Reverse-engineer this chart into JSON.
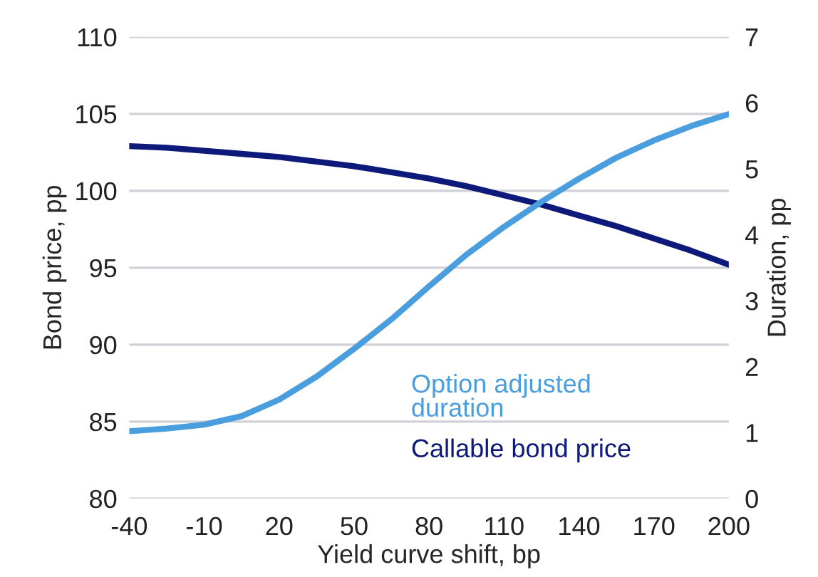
{
  "chart_data": {
    "type": "line",
    "xlabel": "Yield curve shift, bp",
    "ylabel": "Bond price, pp",
    "y2label": "Duration, pp",
    "x": [
      -40,
      -25,
      -10,
      5,
      20,
      35,
      50,
      65,
      80,
      95,
      110,
      125,
      140,
      155,
      170,
      185,
      200
    ],
    "series": [
      {
        "name": "Option adjusted duration",
        "color": "#4a9ede",
        "axis": "y2",
        "values": [
          1.02,
          1.06,
          1.12,
          1.25,
          1.5,
          1.85,
          2.27,
          2.72,
          3.22,
          3.7,
          4.12,
          4.5,
          4.85,
          5.17,
          5.43,
          5.65,
          5.83
        ]
      },
      {
        "name": "Callable bond price",
        "color": "#0d1a7a",
        "values": [
          102.9,
          102.8,
          102.6,
          102.4,
          102.2,
          101.9,
          101.6,
          101.2,
          100.8,
          100.3,
          99.7,
          99.1,
          98.4,
          97.7,
          96.9,
          96.1,
          95.2
        ]
      }
    ],
    "xlim": [
      -40,
      200
    ],
    "xticks": [
      -40,
      -10,
      20,
      50,
      80,
      110,
      140,
      170,
      200
    ],
    "ylim": [
      80,
      110
    ],
    "yticks": [
      80,
      85,
      90,
      95,
      100,
      105,
      110
    ],
    "y2lim": [
      0,
      7
    ],
    "y2ticks": [
      0,
      1,
      2,
      3,
      4,
      5,
      6,
      7
    ],
    "grid": "y",
    "legend": false,
    "marker": "none",
    "line_style": "solid"
  }
}
